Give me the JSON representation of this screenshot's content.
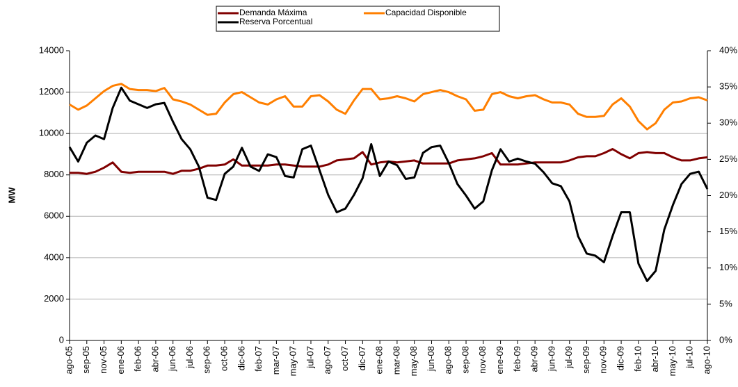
{
  "chart_data": {
    "type": "line",
    "ylabel": "MW",
    "categories": [
      "ago-05",
      null,
      "sep-05",
      null,
      "nov-05",
      null,
      "ene-06",
      null,
      "feb-06",
      null,
      "abr-06",
      null,
      "jun-06",
      null,
      "jul-06",
      null,
      "sep-06",
      null,
      "oct-06",
      null,
      "dic-06",
      null,
      "feb-07",
      null,
      "mar-07",
      null,
      "may-07",
      null,
      "jul-07",
      null,
      "ago-07",
      null,
      "oct-07",
      null,
      "dic-07",
      null,
      "ene-08",
      null,
      "mar-08",
      null,
      "may-08",
      null,
      "jun-08",
      null,
      "ago-08",
      null,
      "sep-08",
      null,
      "nov-08",
      null,
      "ene-09",
      null,
      "feb-09",
      null,
      "abr-09",
      null,
      "jun-09",
      null,
      "jul-09",
      null,
      "sep-09",
      null,
      "nov-09",
      null,
      "dic-09",
      null,
      "feb-10",
      null,
      "abr-10",
      null,
      "may-10",
      null,
      "jul-10",
      null,
      "ago-10"
    ],
    "series": [
      {
        "name": "Demanda Máxima",
        "color": "#800000",
        "values": [
          8100,
          8100,
          8050,
          8150,
          8350,
          8600,
          8150,
          8100,
          8150,
          8150,
          8150,
          8150,
          8050,
          8200,
          8200,
          8300,
          8450,
          8450,
          8500,
          8750,
          8450,
          8450,
          8450,
          8450,
          8500,
          8500,
          8450,
          8400,
          8400,
          8400,
          8500,
          8700,
          8750,
          8800,
          9100,
          8500,
          8600,
          8650,
          8600,
          8650,
          8700,
          8550,
          8550,
          8550,
          8550,
          8700,
          8750,
          8800,
          8900,
          9050,
          8500,
          8500,
          8500,
          8550,
          8600,
          8600,
          8600,
          8600,
          8700,
          8850,
          8900,
          8900,
          9050,
          9250,
          9000,
          8800,
          9050,
          9100,
          9050,
          9050,
          8850,
          8700,
          8700,
          8800,
          8850
        ]
      },
      {
        "name": "Capacidad Disponible",
        "color": "#ff7f00",
        "values": [
          11400,
          11150,
          11350,
          11700,
          12050,
          12300,
          12400,
          12150,
          12100,
          12100,
          12050,
          12200,
          11650,
          11550,
          11400,
          11150,
          10900,
          10950,
          11500,
          11900,
          12000,
          11750,
          11500,
          11400,
          11650,
          11800,
          11300,
          11300,
          11800,
          11850,
          11550,
          11150,
          10950,
          11600,
          12150,
          12150,
          11650,
          11700,
          11800,
          11700,
          11550,
          11900,
          12000,
          12100,
          12000,
          11800,
          11650,
          11100,
          11150,
          11900,
          12000,
          11800,
          11700,
          11800,
          11850,
          11650,
          11500,
          11500,
          11400,
          10950,
          10800,
          10800,
          10850,
          11400,
          11700,
          11300,
          10600,
          10200,
          10500,
          11150,
          11500,
          11550,
          11700,
          11750,
          11600
        ]
      },
      {
        "name": "Reserva Porcentual",
        "color": "#000000",
        "axis": "y2",
        "values": [
          26.7,
          24.7,
          27.3,
          28.3,
          27.8,
          32.1,
          34.9,
          33.1,
          32.6,
          32.1,
          32.6,
          32.8,
          30.2,
          27.8,
          26.4,
          24.0,
          19.7,
          19.4,
          23.0,
          24.0,
          26.6,
          24.0,
          23.4,
          25.7,
          25.3,
          22.7,
          22.5,
          26.4,
          26.9,
          23.5,
          20.1,
          17.7,
          18.2,
          20.1,
          22.4,
          27.1,
          22.7,
          24.7,
          24.2,
          22.3,
          22.5,
          25.9,
          26.7,
          26.9,
          24.5,
          21.6,
          20.0,
          18.2,
          19.2,
          23.5,
          26.4,
          24.7,
          25.1,
          24.7,
          24.4,
          23.2,
          21.7,
          21.3,
          19.2,
          14.4,
          12.0,
          11.7,
          10.8,
          14.4,
          17.7,
          17.7,
          10.6,
          8.2,
          9.6,
          15.3,
          18.7,
          21.6,
          23.0,
          23.3,
          20.9
        ]
      }
    ],
    "ylim": [
      0,
      14000
    ],
    "yticks": [
      0,
      2000,
      4000,
      6000,
      8000,
      10000,
      12000,
      14000
    ],
    "y2lim": [
      0,
      40
    ],
    "y2ticks": [
      {
        "value": 0,
        "label": "0%"
      },
      {
        "value": 5,
        "label": "5%"
      },
      {
        "value": 10,
        "label": "10%"
      },
      {
        "value": 15,
        "label": "15%"
      },
      {
        "value": 20,
        "label": "20%"
      },
      {
        "value": 25,
        "label": "25%"
      },
      {
        "value": 30,
        "label": "30%"
      },
      {
        "value": 35,
        "label": "35%"
      },
      {
        "value": 40,
        "label": "40%"
      }
    ],
    "grid": true,
    "legend": "top"
  }
}
